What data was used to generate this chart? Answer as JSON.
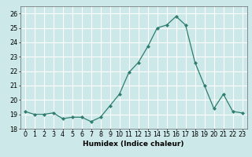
{
  "x": [
    0,
    1,
    2,
    3,
    4,
    5,
    6,
    7,
    8,
    9,
    10,
    11,
    12,
    13,
    14,
    15,
    16,
    17,
    18,
    19,
    20,
    21,
    22,
    23
  ],
  "y": [
    19.2,
    19.0,
    19.0,
    19.1,
    18.7,
    18.8,
    18.8,
    18.5,
    18.8,
    19.6,
    20.4,
    21.9,
    22.6,
    23.7,
    25.0,
    25.2,
    25.8,
    25.2,
    22.6,
    21.0,
    19.4,
    20.4,
    19.2,
    19.1
  ],
  "xlabel": "Humidex (Indice chaleur)",
  "xlim": [
    -0.5,
    23.5
  ],
  "ylim": [
    18.0,
    26.5
  ],
  "yticks": [
    18,
    19,
    20,
    21,
    22,
    23,
    24,
    25,
    26
  ],
  "xticks": [
    0,
    1,
    2,
    3,
    4,
    5,
    6,
    7,
    8,
    9,
    10,
    11,
    12,
    13,
    14,
    15,
    16,
    17,
    18,
    19,
    20,
    21,
    22,
    23
  ],
  "line_color": "#2e7d6e",
  "marker_color": "#2e7d6e",
  "bg_color": "#cce8e8",
  "grid_color": "#ffffff",
  "label_fontsize": 6.5,
  "tick_fontsize": 5.8
}
